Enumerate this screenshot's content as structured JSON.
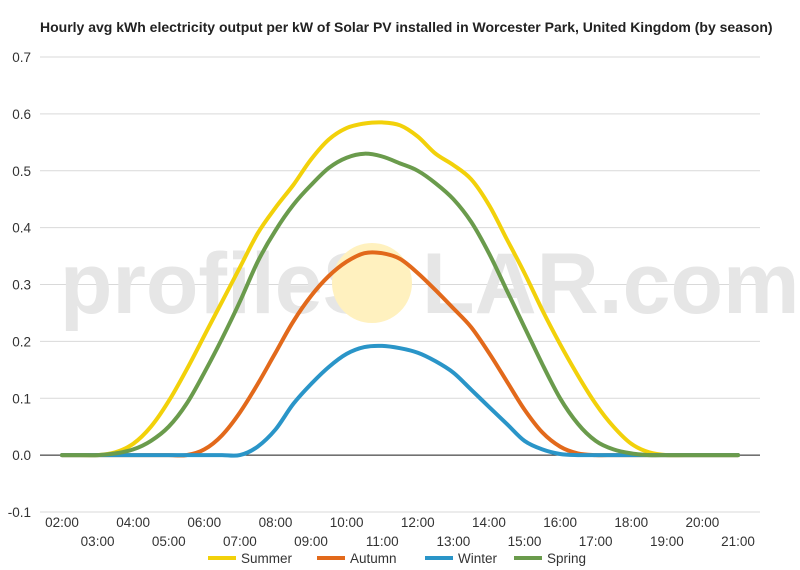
{
  "chart_data": {
    "type": "line",
    "title": "Hourly avg kWh electricity output per kW of Solar PV installed in Worcester Park, United Kingdom (by season)",
    "xlabel": "",
    "ylabel": "",
    "ylim": [
      -0.1,
      0.7
    ],
    "y_ticks": [
      "-0.1",
      "0.0",
      "0.1",
      "0.2",
      "0.3",
      "0.4",
      "0.5",
      "0.6",
      "0.7"
    ],
    "x_ticks": [
      "02:00",
      "03:00",
      "04:00",
      "05:00",
      "06:00",
      "07:00",
      "08:00",
      "09:00",
      "10:00",
      "11:00",
      "12:00",
      "13:00",
      "14:00",
      "15:00",
      "16:00",
      "17:00",
      "18:00",
      "19:00",
      "20:00",
      "21:00"
    ],
    "x": [
      2,
      2.5,
      3,
      3.5,
      4,
      4.5,
      5,
      5.5,
      6,
      6.5,
      7,
      7.5,
      8,
      8.5,
      9,
      9.5,
      10,
      10.5,
      11,
      11.5,
      12,
      12.5,
      13,
      13.5,
      14,
      14.5,
      15,
      15.5,
      16,
      16.5,
      17,
      17.5,
      18,
      18.5,
      19,
      19.5,
      20,
      20.5,
      21
    ],
    "grid": true,
    "legend_position": "bottom",
    "series": [
      {
        "name": "Summer",
        "color": "#f2d10a",
        "values": [
          0,
          0,
          0,
          0.005,
          0.02,
          0.05,
          0.095,
          0.15,
          0.21,
          0.27,
          0.33,
          0.39,
          0.435,
          0.475,
          0.52,
          0.555,
          0.575,
          0.583,
          0.585,
          0.58,
          0.56,
          0.53,
          0.51,
          0.485,
          0.44,
          0.38,
          0.32,
          0.255,
          0.195,
          0.14,
          0.09,
          0.05,
          0.02,
          0.005,
          0,
          0,
          0,
          0,
          0
        ]
      },
      {
        "name": "Autumn",
        "color": "#e2691b",
        "values": [
          0,
          0,
          0,
          0,
          0,
          0,
          0,
          0,
          0.01,
          0.035,
          0.075,
          0.125,
          0.18,
          0.235,
          0.28,
          0.315,
          0.34,
          0.355,
          0.355,
          0.345,
          0.32,
          0.29,
          0.258,
          0.225,
          0.18,
          0.13,
          0.08,
          0.04,
          0.015,
          0.003,
          0,
          0,
          0,
          0,
          0,
          0,
          0,
          0,
          0
        ]
      },
      {
        "name": "Winter",
        "color": "#2a95c8",
        "values": [
          0,
          0,
          0,
          0,
          0,
          0,
          0,
          0,
          0,
          0,
          0,
          0.015,
          0.045,
          0.09,
          0.125,
          0.155,
          0.178,
          0.19,
          0.192,
          0.188,
          0.18,
          0.165,
          0.145,
          0.115,
          0.085,
          0.055,
          0.025,
          0.01,
          0.002,
          0,
          0,
          0,
          0,
          0,
          0,
          0,
          0,
          0,
          0
        ]
      },
      {
        "name": "Spring",
        "color": "#6a9b4c",
        "values": [
          0,
          0,
          0,
          0.003,
          0.01,
          0.025,
          0.05,
          0.09,
          0.145,
          0.205,
          0.27,
          0.34,
          0.395,
          0.44,
          0.475,
          0.505,
          0.523,
          0.53,
          0.525,
          0.513,
          0.5,
          0.478,
          0.45,
          0.41,
          0.355,
          0.29,
          0.225,
          0.16,
          0.1,
          0.055,
          0.025,
          0.01,
          0.003,
          0,
          0,
          0,
          0,
          0,
          0
        ]
      }
    ]
  },
  "watermark": {
    "text_left": "profileS",
    "text_right": "LAR.com",
    "sun_color": "#fff1bf"
  }
}
